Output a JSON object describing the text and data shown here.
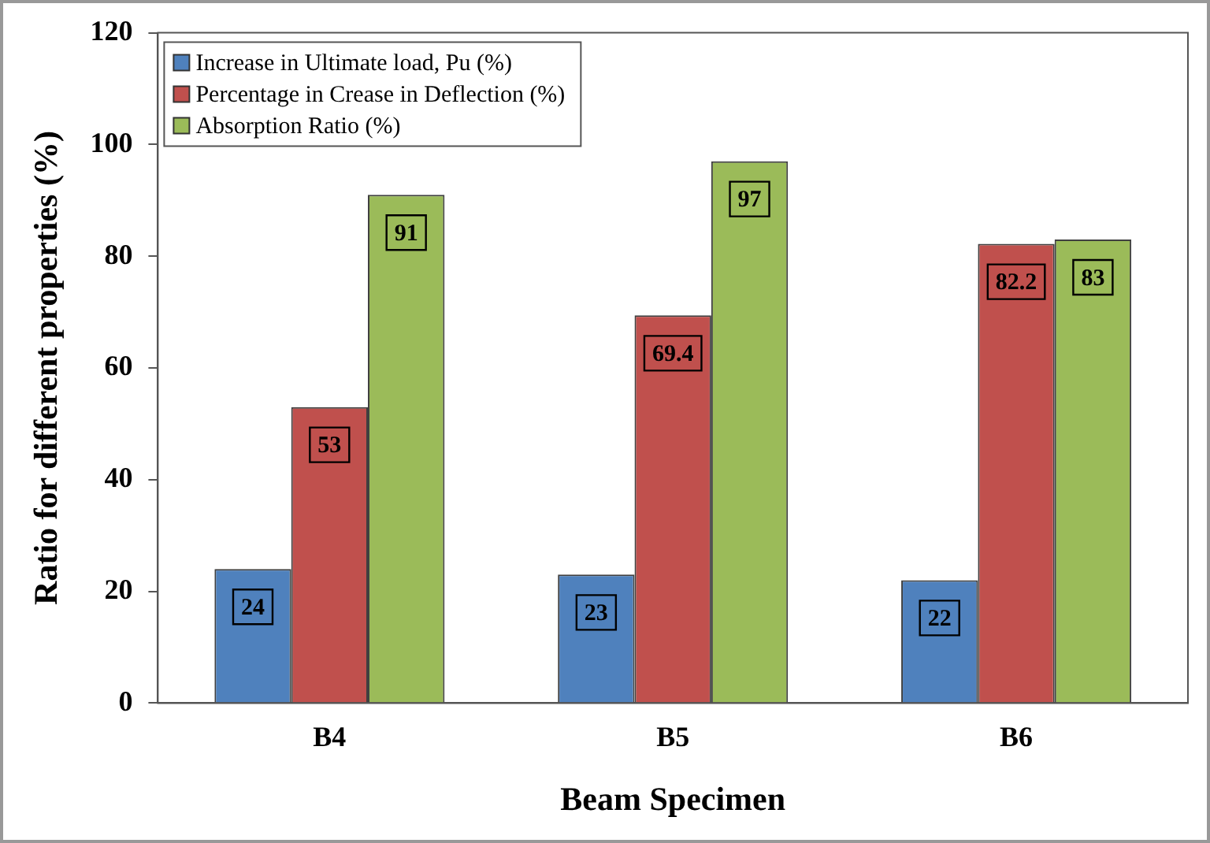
{
  "chart_data": {
    "type": "bar",
    "xlabel": "Beam Specimen",
    "ylabel": "Ratio for different properties (%)",
    "categories": [
      "B4",
      "B5",
      "B6"
    ],
    "series": [
      {
        "name": "Increase in Ultimate load, Pu (%)",
        "color": "#4f81bd",
        "values": [
          24,
          23,
          22
        ]
      },
      {
        "name": "Percentage in Crease in Deflection (%)",
        "color": "#c0504d",
        "values": [
          53,
          69.4,
          82.2
        ]
      },
      {
        "name": "Absorption Ratio (%)",
        "color": "#9bbb59",
        "values": [
          91,
          97,
          83
        ]
      }
    ],
    "ylim": [
      0,
      120
    ],
    "yticks": [
      0,
      20,
      40,
      60,
      80,
      100,
      120
    ],
    "grid": false,
    "legend": "top left",
    "data_labels": true
  }
}
